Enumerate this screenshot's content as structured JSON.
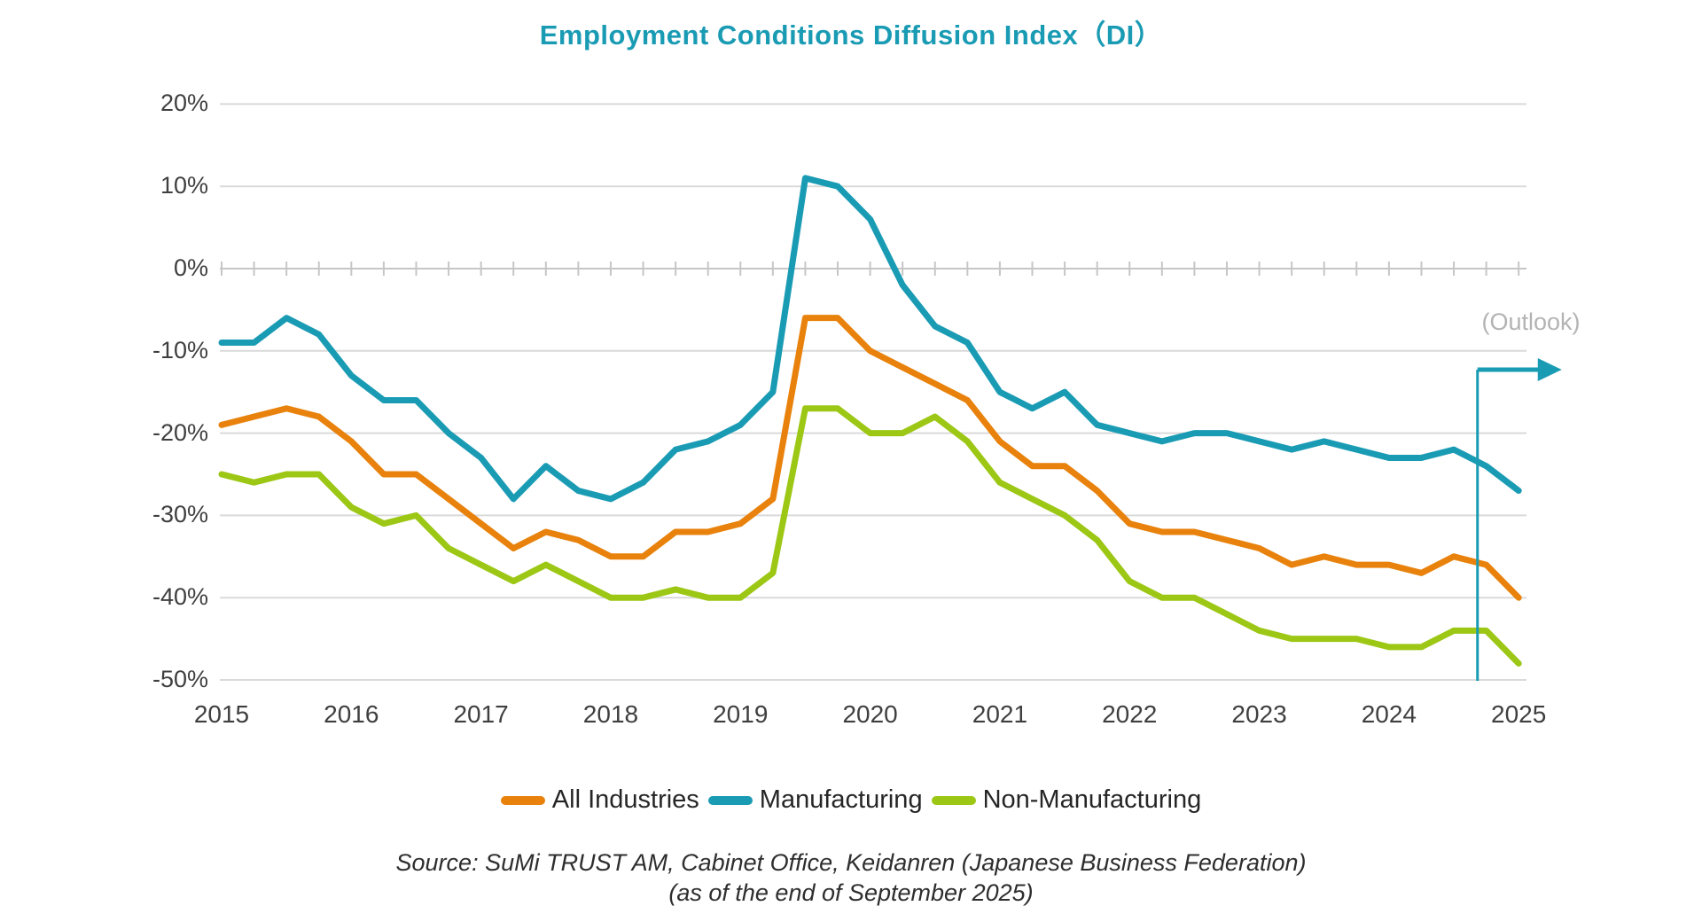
{
  "title": "Employment Conditions Diffusion Index（DI）",
  "outlook_label": "(Outlook)",
  "colors": {
    "title": "#1a9bb4",
    "all_industries": "#e8820c",
    "manufacturing": "#1a9bb4",
    "non_manufacturing": "#9cc715",
    "outlook_arrow": "#1a9bb4",
    "gridline": "#dadada",
    "zero_line": "#c6c6c6",
    "axis_text": "#3f3f3f",
    "outlook_text": "#b3b3b3"
  },
  "legend": [
    {
      "label": "All Industries",
      "color": "#e8820c"
    },
    {
      "label": "Manufacturing",
      "color": "#1a9bb4"
    },
    {
      "label": "Non-Manufacturing",
      "color": "#9cc715"
    }
  ],
  "source_line1": "Source: SuMi TRUST AM, Cabinet Office, Keidanren (Japanese Business Federation)",
  "source_line2": "(as of the end of September 2025)",
  "chart_data": {
    "type": "line",
    "title": "Employment Conditions Diffusion Index（DI）",
    "ylabel": "",
    "xlabel": "",
    "ylim": [
      -50,
      20
    ],
    "ytick_step": 10,
    "y_ticks": [
      {
        "label": "20%",
        "value": 20
      },
      {
        "label": "10%",
        "value": 10
      },
      {
        "label": "0%",
        "value": 0
      },
      {
        "label": "-10%",
        "value": -10
      },
      {
        "label": "-20%",
        "value": -20
      },
      {
        "label": "-30%",
        "value": -30
      },
      {
        "label": "-40%",
        "value": -40
      },
      {
        "label": "-50%",
        "value": -50
      }
    ],
    "x_year_ticks": [
      {
        "label": "2015",
        "index": 0
      },
      {
        "label": "2016",
        "index": 4
      },
      {
        "label": "2017",
        "index": 8
      },
      {
        "label": "2018",
        "index": 12
      },
      {
        "label": "2019",
        "index": 16
      },
      {
        "label": "2020",
        "index": 20
      },
      {
        "label": "2021",
        "index": 24
      },
      {
        "label": "2022",
        "index": 28
      },
      {
        "label": "2023",
        "index": 32
      },
      {
        "label": "2024",
        "index": 36
      },
      {
        "label": "2025",
        "index": 40
      }
    ],
    "x": [
      "2015 Q1",
      "2015 Q2",
      "2015 Q3",
      "2015 Q4",
      "2016 Q1",
      "2016 Q2",
      "2016 Q3",
      "2016 Q4",
      "2017 Q1",
      "2017 Q2",
      "2017 Q3",
      "2017 Q4",
      "2018 Q1",
      "2018 Q2",
      "2018 Q3",
      "2018 Q4",
      "2019 Q1",
      "2019 Q2",
      "2019 Q3",
      "2019 Q4",
      "2020 Q1",
      "2020 Q2",
      "2020 Q3",
      "2020 Q4",
      "2021 Q1",
      "2021 Q2",
      "2021 Q3",
      "2021 Q4",
      "2022 Q1",
      "2022 Q2",
      "2022 Q3",
      "2022 Q4",
      "2023 Q1",
      "2023 Q2",
      "2023 Q3",
      "2023 Q4",
      "2024 Q1",
      "2024 Q2",
      "2024 Q3",
      "2024 Q4",
      "2025 Q1"
    ],
    "series": [
      {
        "name": "All Industries",
        "color": "#e8820c",
        "values": [
          -19,
          -18,
          -17,
          -18,
          -21,
          -25,
          -25,
          -28,
          -31,
          -34,
          -32,
          -33,
          -35,
          -35,
          -32,
          -32,
          -31,
          -28,
          -6,
          -6,
          -10,
          -12,
          -14,
          -16,
          -21,
          -24,
          -24,
          -27,
          -31,
          -32,
          -32,
          -33,
          -34,
          -36,
          -35,
          -36,
          -36,
          -37,
          -35,
          -36,
          -40
        ]
      },
      {
        "name": "Manufacturing",
        "color": "#1a9bb4",
        "values": [
          -9,
          -9,
          -6,
          -8,
          -13,
          -16,
          -16,
          -20,
          -23,
          -28,
          -24,
          -27,
          -28,
          -26,
          -22,
          -21,
          -19,
          -15,
          11,
          10,
          6,
          -2,
          -7,
          -9,
          -15,
          -17,
          -15,
          -19,
          -20,
          -21,
          -20,
          -20,
          -21,
          -22,
          -21,
          -22,
          -23,
          -23,
          -22,
          -24,
          -27
        ]
      },
      {
        "name": "Non-Manufacturing",
        "color": "#9cc715",
        "values": [
          -25,
          -26,
          -25,
          -25,
          -29,
          -31,
          -30,
          -34,
          -36,
          -38,
          -36,
          -38,
          -40,
          -40,
          -39,
          -40,
          -40,
          -37,
          -17,
          -17,
          -20,
          -20,
          -18,
          -21,
          -26,
          -28,
          -30,
          -33,
          -38,
          -40,
          -40,
          -42,
          -44,
          -45,
          -45,
          -45,
          -46,
          -46,
          -44,
          -44,
          -48
        ]
      }
    ],
    "outlook_boundary_index": 38.73,
    "outlook_points": 2,
    "grid": true,
    "legend_position": "bottom"
  }
}
